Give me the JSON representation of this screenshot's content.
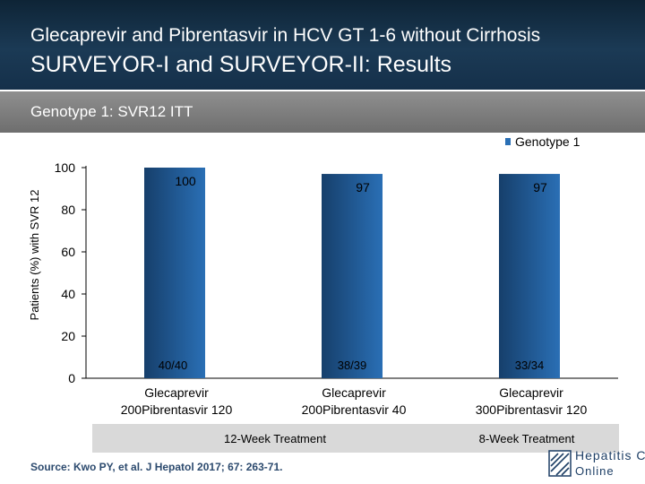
{
  "slide": {
    "title_line1": "Glecaprevir and Pibrentasvir in HCV GT 1-6 without Cirrhosis",
    "title_line2": "SURVEYOR-I and SURVEYOR-II: Results",
    "subtitle": "Genotype 1: SVR12 ITT",
    "source": "Source: Kwo PY, et al. J Hepatol 2017; 67: 263-71.",
    "logo_line1": "Hepatitis C",
    "logo_line2": "Online"
  },
  "colors": {
    "bar_dark": "#163f6b",
    "bar_light": "#2a6fb5",
    "legend_swatch": "#2a6fb5",
    "group_box": "#d9d9d9"
  },
  "chart_data": {
    "type": "bar",
    "categories": [
      "Glecaprevir 200Pibrentasvir 120",
      "Glecaprevir 200Pibrentasvir 40",
      "Glecaprevir 300Pibrentasvir 120"
    ],
    "category_lines": [
      [
        "Glecaprevir",
        "200Pibrentasvir 120"
      ],
      [
        "Glecaprevir",
        "200Pibrentasvir 40"
      ],
      [
        "Glecaprevir",
        "300Pibrentasvir 120"
      ]
    ],
    "series": [
      {
        "name": "Genotype 1",
        "values": [
          100,
          97,
          97
        ]
      }
    ],
    "value_labels": [
      "100",
      "97",
      "97"
    ],
    "count_labels": [
      "40/40",
      "38/39",
      "33/34"
    ],
    "ylabel": "Patients (%) with SVR 12",
    "ylim": [
      0,
      100
    ],
    "yticks": [
      0,
      20,
      40,
      60,
      80,
      100
    ],
    "legend_position": "top-right",
    "grid": false,
    "groups": [
      {
        "label": "12-Week Treatment",
        "categories": [
          0,
          1
        ]
      },
      {
        "label": "8-Week Treatment",
        "categories": [
          2
        ]
      }
    ]
  }
}
